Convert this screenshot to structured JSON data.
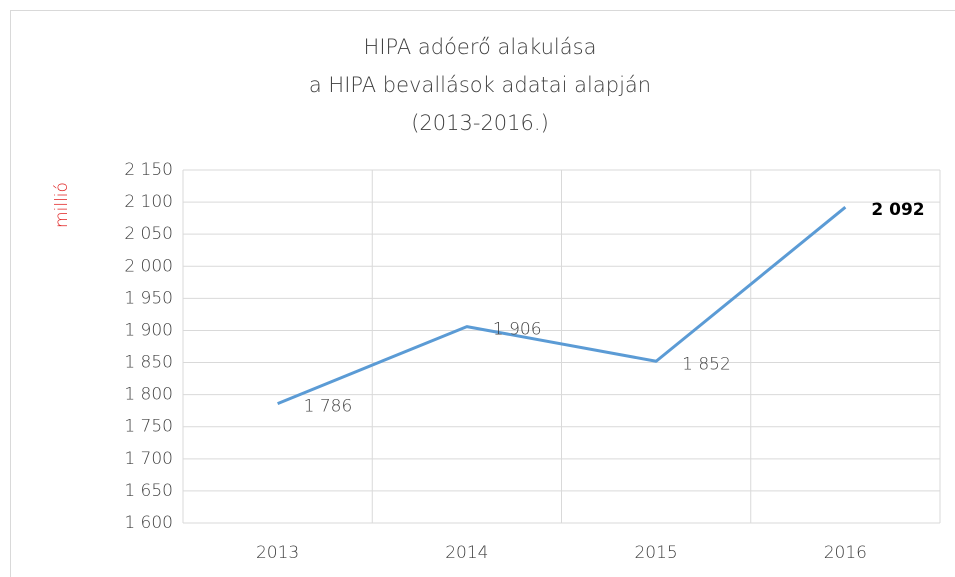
{
  "chart_data": {
    "type": "line",
    "title": [
      "HIPA adóerő alakulása",
      "a HIPA bevallások adatai alapján",
      "(2013-2016.)"
    ],
    "y_label": "millió",
    "categories": [
      "2013",
      "2014",
      "2015",
      "2016"
    ],
    "series": [
      {
        "name": "HIPA adóerő",
        "color": "#5b9bd5",
        "values": [
          1786,
          1906,
          1852,
          2092
        ],
        "value_labels": [
          "1 786",
          "1 906",
          "1 852",
          "2 092"
        ]
      }
    ],
    "ylim": [
      1600,
      2150
    ],
    "yticks": [
      {
        "value": 1600,
        "label": "1 600"
      },
      {
        "value": 1650,
        "label": "1 650"
      },
      {
        "value": 1700,
        "label": "1 700"
      },
      {
        "value": 1750,
        "label": "1 750"
      },
      {
        "value": 1800,
        "label": "1 800"
      },
      {
        "value": 1850,
        "label": "1 850"
      },
      {
        "value": 1900,
        "label": "1 900"
      },
      {
        "value": 1950,
        "label": "1 950"
      },
      {
        "value": 2000,
        "label": "2 000"
      },
      {
        "value": 2050,
        "label": "2 050"
      },
      {
        "value": 2100,
        "label": "2 100"
      },
      {
        "value": 2150,
        "label": "2 150"
      }
    ],
    "grid": true
  }
}
